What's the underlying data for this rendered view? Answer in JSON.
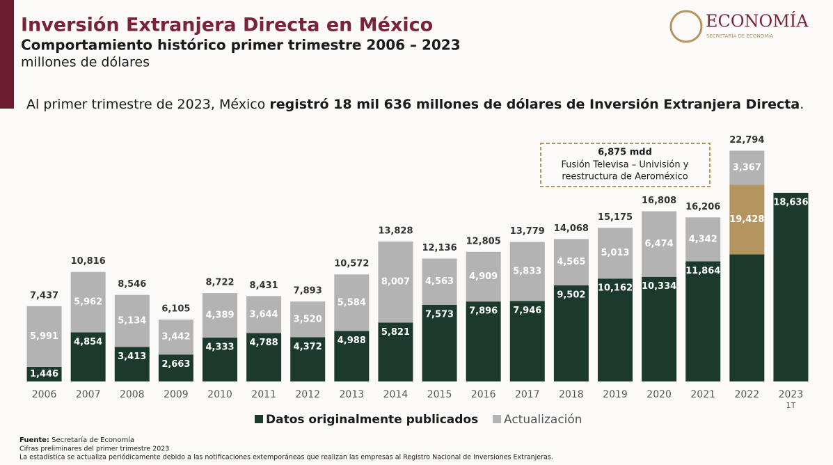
{
  "header": {
    "title": "Inversión Extranjera Directa en México",
    "subtitle": "Comportamiento histórico primer trimestre 2006 – 2023",
    "units": "millones de dólares",
    "logo": "ECONOMÍA",
    "logo_sub": "SECRETARÍA DE ECONOMÍA"
  },
  "statement": {
    "normal": "Al primer trimestre de 2023, México ",
    "bold": "registró 18 mil 636 millones de dólares de Inversión Extranjera Directa",
    "end": "."
  },
  "chart_data": {
    "type": "stacked-bar",
    "categories": [
      "2006",
      "2007",
      "2008",
      "2009",
      "2010",
      "2011",
      "2012",
      "2013",
      "2014",
      "2015",
      "2016",
      "2017",
      "2018",
      "2019",
      "2020",
      "2021",
      "2022",
      "2023"
    ],
    "category_note": "1T",
    "series": [
      {
        "name": "Datos originalmente publicados",
        "color": "#1b3a2d",
        "label_color": "#ffffff",
        "values": [
          1446,
          4854,
          3413,
          2663,
          4333,
          4788,
          4372,
          4988,
          5821,
          7573,
          7896,
          7946,
          9502,
          10162,
          10334,
          11864,
          12553,
          18636
        ],
        "value_labels": [
          "1,446",
          "4,854",
          "3,413",
          "2,663",
          "4,333",
          "4,788",
          "4,372",
          "4,988",
          "5,821",
          "7,573",
          "7,896",
          "7,946",
          "9,502",
          "10,162",
          "10,334",
          "11,864",
          null,
          "18,636"
        ]
      },
      {
        "color": "#b5955f",
        "values": [
          null,
          null,
          null,
          null,
          null,
          null,
          null,
          null,
          null,
          null,
          null,
          null,
          null,
          null,
          null,
          null,
          6875,
          null
        ]
      },
      {
        "name": "Actualización",
        "color": "#b3b3b3",
        "label_color": "#ffffff",
        "values": [
          5991,
          5962,
          5134,
          3442,
          4389,
          3644,
          3520,
          5584,
          8007,
          4563,
          4909,
          5833,
          4565,
          5013,
          6474,
          4342,
          3367,
          null
        ],
        "value_labels": [
          "5,991",
          "5,962",
          "5,134",
          "3,442",
          "4,389",
          "3,644",
          "3,520",
          "5,584",
          "8,007",
          "4,563",
          "4,909",
          "5,833",
          "4,565",
          "5,013",
          "6,474",
          "4,342",
          "3,367",
          null
        ]
      }
    ],
    "totals": {
      "values": [
        7437,
        10816,
        8546,
        6105,
        8722,
        8431,
        7893,
        10572,
        13828,
        12136,
        12805,
        13779,
        14068,
        15175,
        16808,
        16206,
        22794,
        null
      ],
      "value_labels": [
        "7,437",
        "10,816",
        "8,546",
        "6,105",
        "8,722",
        "8,431",
        "7,893",
        "10,572",
        "13,828",
        "12,136",
        "12,805",
        "13,779",
        "14,068",
        "15,175",
        "16,808",
        "16,206",
        "22,794",
        null
      ]
    },
    "annotations": [
      {
        "text": "19,428"
      }
    ],
    "callout": {
      "title": "6,875 mdd",
      "lines": [
        "Fusión Televisa – Univisión y",
        "reestructura de Aeroméxico"
      ]
    }
  },
  "footer": {
    "source_label": "Fuente:",
    "source": " Secretaría de Economía",
    "notes": [
      "Cifras preliminares del primer trimestre 2023",
      "La estadística se actualiza periódicamente debido a las notificaciones extemporáneas que realizan las empresas al Registro Nacional de Inversiones Extranjeras."
    ]
  }
}
